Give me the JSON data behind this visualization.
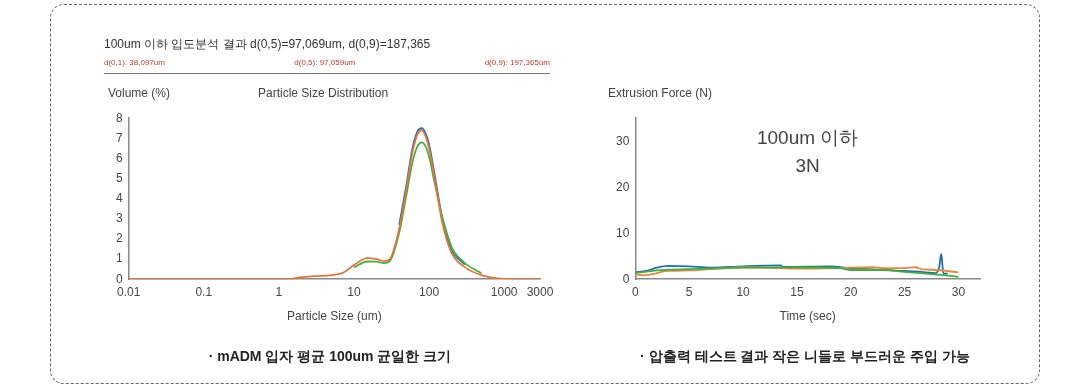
{
  "chart_data": [
    {
      "type": "line",
      "title": "100um 이하 입도분석 결과 d(0,5)=97,069um, d(0,9)=187,365",
      "subtitle": "Particle Size Distribution",
      "xlabel": "Particle Size (um)",
      "ylabel": "Volume (%)",
      "annotations": [
        "d(0,1): 38,097um",
        "d(0,5): 97,059um",
        "d(0,9): 197,365um",
        "· mADM 입자 평균 100um 균일한 크기"
      ],
      "log": "x",
      "xlim": [
        0.01,
        3000
      ],
      "xticks": [
        0.01,
        0.1,
        1,
        10,
        100,
        1000,
        3000
      ],
      "ylim": [
        0,
        8
      ],
      "yticks": [
        0,
        1,
        2,
        3,
        4,
        5,
        6,
        7,
        8
      ],
      "grid": false,
      "legend": false,
      "marker": "none",
      "series": [
        {
          "color": "#2f74b5",
          "x": [
            40,
            50,
            60,
            70,
            80,
            90,
            100,
            120,
            150,
            200,
            300
          ],
          "values": [
            2.7,
            4.7,
            6.5,
            7.35,
            7.5,
            7.25,
            6.7,
            5.1,
            3.0,
            1.45,
            0.72
          ]
        },
        {
          "color": "#44b044",
          "x": [
            10,
            15,
            20,
            25,
            30,
            40,
            50,
            60,
            70,
            80,
            90,
            100,
            120,
            150,
            200,
            300,
            500
          ],
          "values": [
            0.58,
            0.88,
            0.87,
            0.8,
            0.9,
            2.3,
            4.2,
            5.8,
            6.6,
            6.8,
            6.6,
            6.1,
            4.7,
            3.1,
            1.6,
            0.8,
            0.3
          ]
        },
        {
          "color": "#e2753a",
          "x": [
            0.01,
            1,
            1.3,
            2,
            3,
            5,
            7,
            10,
            15,
            20,
            25,
            30,
            40,
            50,
            60,
            70,
            80,
            90,
            100,
            120,
            150,
            200,
            300,
            500,
            1000,
            3000
          ],
          "values": [
            0,
            0,
            0,
            0.1,
            0.15,
            0.2,
            0.3,
            0.7,
            1.05,
            1.0,
            0.9,
            1.0,
            2.5,
            4.5,
            6.3,
            7.2,
            7.4,
            7.1,
            6.5,
            4.9,
            2.8,
            1.3,
            0.6,
            0.2,
            0.02,
            0
          ]
        }
      ]
    },
    {
      "type": "line",
      "xlabel": "Time (sec)",
      "ylabel": "Extrusion Force (N)",
      "annotations": [
        "100um 이하",
        "3N",
        "· 압출력 테스트 결과 작은 니들로 부드러운 주입 가능"
      ],
      "xlim": [
        0,
        32
      ],
      "xticks": [
        0,
        5,
        10,
        15,
        20,
        25,
        30
      ],
      "ylim": [
        0,
        35
      ],
      "yticks": [
        0,
        10,
        20,
        30
      ],
      "grid": false,
      "legend": false,
      "marker": "none",
      "series": [
        {
          "color": "#1f6fae",
          "x": [
            0,
            1,
            2,
            3,
            5,
            7,
            10,
            13.5,
            13.7,
            18,
            20,
            25,
            27,
            27.8,
            28.2,
            28.4,
            28.6,
            29
          ],
          "values": [
            1.5,
            1.8,
            2.5,
            2.9,
            2.8,
            2.5,
            2.8,
            3.0,
            2.7,
            2.8,
            2.4,
            1.8,
            1.5,
            1.3,
            2.5,
            5.5,
            1.2,
            1.2
          ]
        },
        {
          "color": "#e8873a",
          "x": [
            0,
            1,
            3,
            5,
            10,
            15,
            20,
            22,
            23,
            25,
            26,
            26.5,
            27,
            28,
            30
          ],
          "values": [
            1.0,
            0.9,
            1.8,
            1.9,
            2.6,
            2.3,
            2.5,
            2.6,
            2.4,
            2.4,
            2.6,
            2.2,
            2.1,
            2.0,
            1.5
          ]
        },
        {
          "color": "#3fae3f",
          "x": [
            0,
            2,
            5,
            10,
            15,
            19,
            20,
            23,
            25,
            27,
            28,
            29,
            30
          ],
          "values": [
            1.3,
            1.9,
            2.2,
            2.5,
            2.6,
            2.4,
            2.0,
            2.0,
            1.6,
            1.2,
            1.0,
            0.8,
            0.5
          ]
        }
      ]
    }
  ]
}
